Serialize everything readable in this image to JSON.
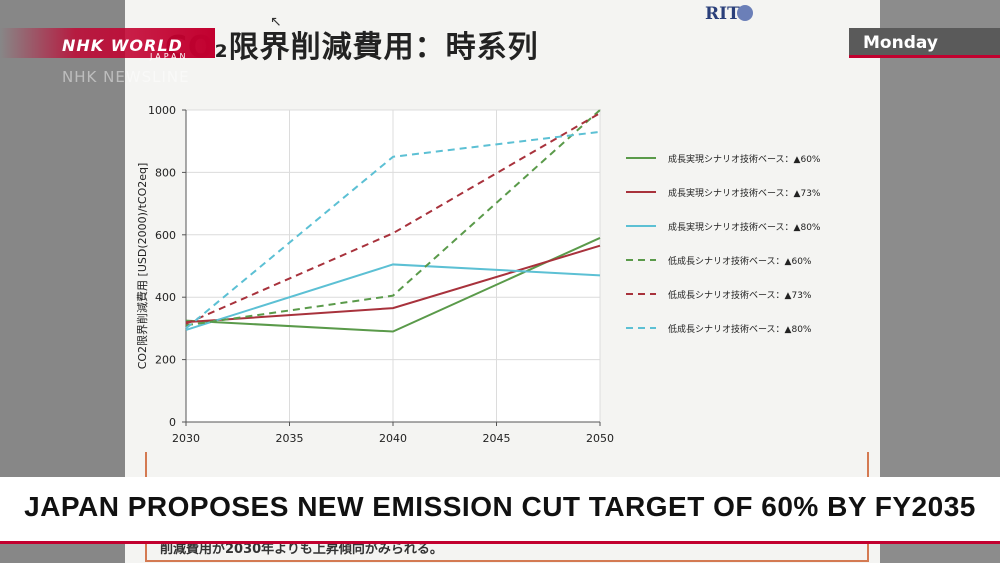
{
  "slide": {
    "title": "CO₂限界削減費用：時系列",
    "logo": "RIT",
    "footer_text": "削減費用が2030年よりも上昇傾向がみられる。"
  },
  "overlay": {
    "channel_top": "NHK WORLD",
    "channel_sub": "JAPAN",
    "program": "NHK NEWSLINE",
    "day": "Monday",
    "headline": "JAPAN PROPOSES NEW EMISSION CUT TARGET OF 60% BY FY2035"
  },
  "chart_data": {
    "type": "line",
    "title": "",
    "xlabel": "",
    "ylabel": "CO2限界削減費用 [USD(2000)/tCO2eq]",
    "x": [
      2030,
      2040,
      2050
    ],
    "xticks": [
      2030,
      2035,
      2040,
      2045,
      2050
    ],
    "yticks": [
      0,
      200,
      400,
      600,
      800,
      1000
    ],
    "xlim": [
      2030,
      2050
    ],
    "ylim": [
      0,
      1000
    ],
    "grid": true,
    "legend_position": "right",
    "series": [
      {
        "name": "成長実現シナリオ技術ベース：▲60%",
        "values": [
          325,
          290,
          590
        ],
        "color": "#5a9a4a",
        "dash": false
      },
      {
        "name": "成長実現シナリオ技術ベース：▲73%",
        "values": [
          320,
          365,
          565
        ],
        "color": "#a8323c",
        "dash": false
      },
      {
        "name": "成長実現シナリオ技術ベース：▲80%",
        "values": [
          295,
          505,
          470
        ],
        "color": "#5cc0d4",
        "dash": false
      },
      {
        "name": "低成長シナリオ技術ベース：▲60%",
        "values": [
          310,
          405,
          1000
        ],
        "color": "#5a9a4a",
        "dash": true
      },
      {
        "name": "低成長シナリオ技術ベース：▲73%",
        "values": [
          315,
          605,
          990
        ],
        "color": "#a8323c",
        "dash": true
      },
      {
        "name": "低成長シナリオ技術ベース：▲80%",
        "values": [
          300,
          850,
          930
        ],
        "color": "#5cc0d4",
        "dash": true
      }
    ]
  }
}
